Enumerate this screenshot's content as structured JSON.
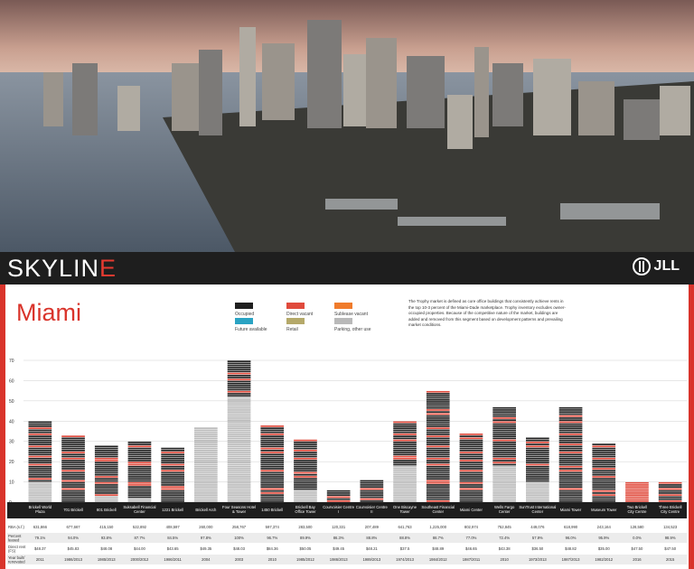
{
  "brand": {
    "name_main": "SKYLIN",
    "name_accent": "E",
    "partner": "JLL"
  },
  "city": "Miami",
  "legend": [
    {
      "label": "Occupied",
      "color": "#1f1f1f"
    },
    {
      "label": "Direct vacant",
      "color": "#e04a3c"
    },
    {
      "label": "Sublease vacant",
      "color": "#f07b2b"
    },
    {
      "label": "Future available",
      "color": "#2aa3c3"
    },
    {
      "label": "Retail",
      "color": "#b5a96a"
    },
    {
      "label": "Parking, other use",
      "color": "#b9b9b9"
    }
  ],
  "note": "The Trophy market is defined as core office buildings that consistently achieve rents in the top 10-3 percent of the Miami-Dade marketplace. Trophy inventory excludes owner-occupied properties. Because of the competitive nature of the market, buildings are added and removed from this segment based on development patterns and prevailing market conditions.",
  "table": {
    "row_labels": [
      "RBA (s.f.)",
      "Percent leased",
      "Direct rent (FS)",
      "Year built/ renovated"
    ]
  },
  "chart_data": {
    "type": "bar",
    "title": "",
    "xlabel": "",
    "ylabel": "",
    "ylim": [
      0,
      70
    ],
    "yticks": [
      0,
      10,
      20,
      30,
      40,
      50,
      60,
      70
    ],
    "grid": true,
    "categories": [
      "Brickell World Plaza",
      "701 Brickell",
      "801 Brickell",
      "Suksabell Financial Center",
      "1221 Brickell",
      "Brickell Arch",
      "Four Seasons Hotel & Tower",
      "1450 Brickell",
      "Brickell Bay Office Tower",
      "Courvoisier Centre I",
      "Courvoisier Centre II",
      "One Biscayne Tower",
      "Southeast Financial Center",
      "Miami Center",
      "Wells Fargo Center",
      "SunTrust International Center",
      "Miami Tower",
      "Museum Tower",
      "Two Brickell City Centre",
      "Three Brickell City Centre"
    ],
    "floors": [
      40,
      33,
      28,
      30,
      27,
      37,
      70,
      38,
      31,
      6,
      11,
      40,
      55,
      34,
      47,
      32,
      47,
      29,
      10,
      10
    ],
    "parking_floors": [
      10,
      0,
      3,
      2,
      0,
      37,
      52,
      0,
      6,
      0,
      0,
      18,
      0,
      0,
      18,
      10,
      0,
      0,
      0,
      0
    ],
    "rba": [
      "631,866",
      "677,667",
      "415,150",
      "522,892",
      "408,597",
      "260,000",
      "258,767",
      "597,374",
      "283,500",
      "120,331",
      "207,489",
      "641,763",
      "1,225,000",
      "802,974",
      "752,845",
      "449,076",
      "618,990",
      "243,164",
      "128,580",
      "134,523"
    ],
    "percent_leased": [
      "79.1%",
      "94.0%",
      "93.8%",
      "87.7%",
      "84.5%",
      "97.8%",
      "100%",
      "96.7%",
      "89.9%",
      "86.3%",
      "88.8%",
      "88.8%",
      "86.7%",
      "77.0%",
      "72.4%",
      "57.9%",
      "96.0%",
      "95.9%",
      "0.0%",
      "98.9%"
    ],
    "direct_rent": [
      "$48.37",
      "$45.83",
      "$48.08",
      "$44.00",
      "$43.65",
      "$49.35",
      "$48.03",
      "$84.36",
      "$50.05",
      "$49.45",
      "$48.21",
      "$37.5",
      "$48.89",
      "$46.65",
      "$43.38",
      "$36.50",
      "$48.82",
      "$35.00",
      "$47.50",
      "$47.50"
    ],
    "year_built": [
      "2011",
      "1986/2013",
      "1985/2013",
      "2000/2012",
      "1986/2011",
      "2004",
      "2003",
      "2010",
      "1985/2012",
      "1986/2013",
      "1989/2013",
      "1974/2013",
      "1984/2012",
      "1987/2011",
      "2010",
      "1973/2013",
      "1987/2013",
      "1982/2012",
      "2016",
      "2015"
    ]
  }
}
